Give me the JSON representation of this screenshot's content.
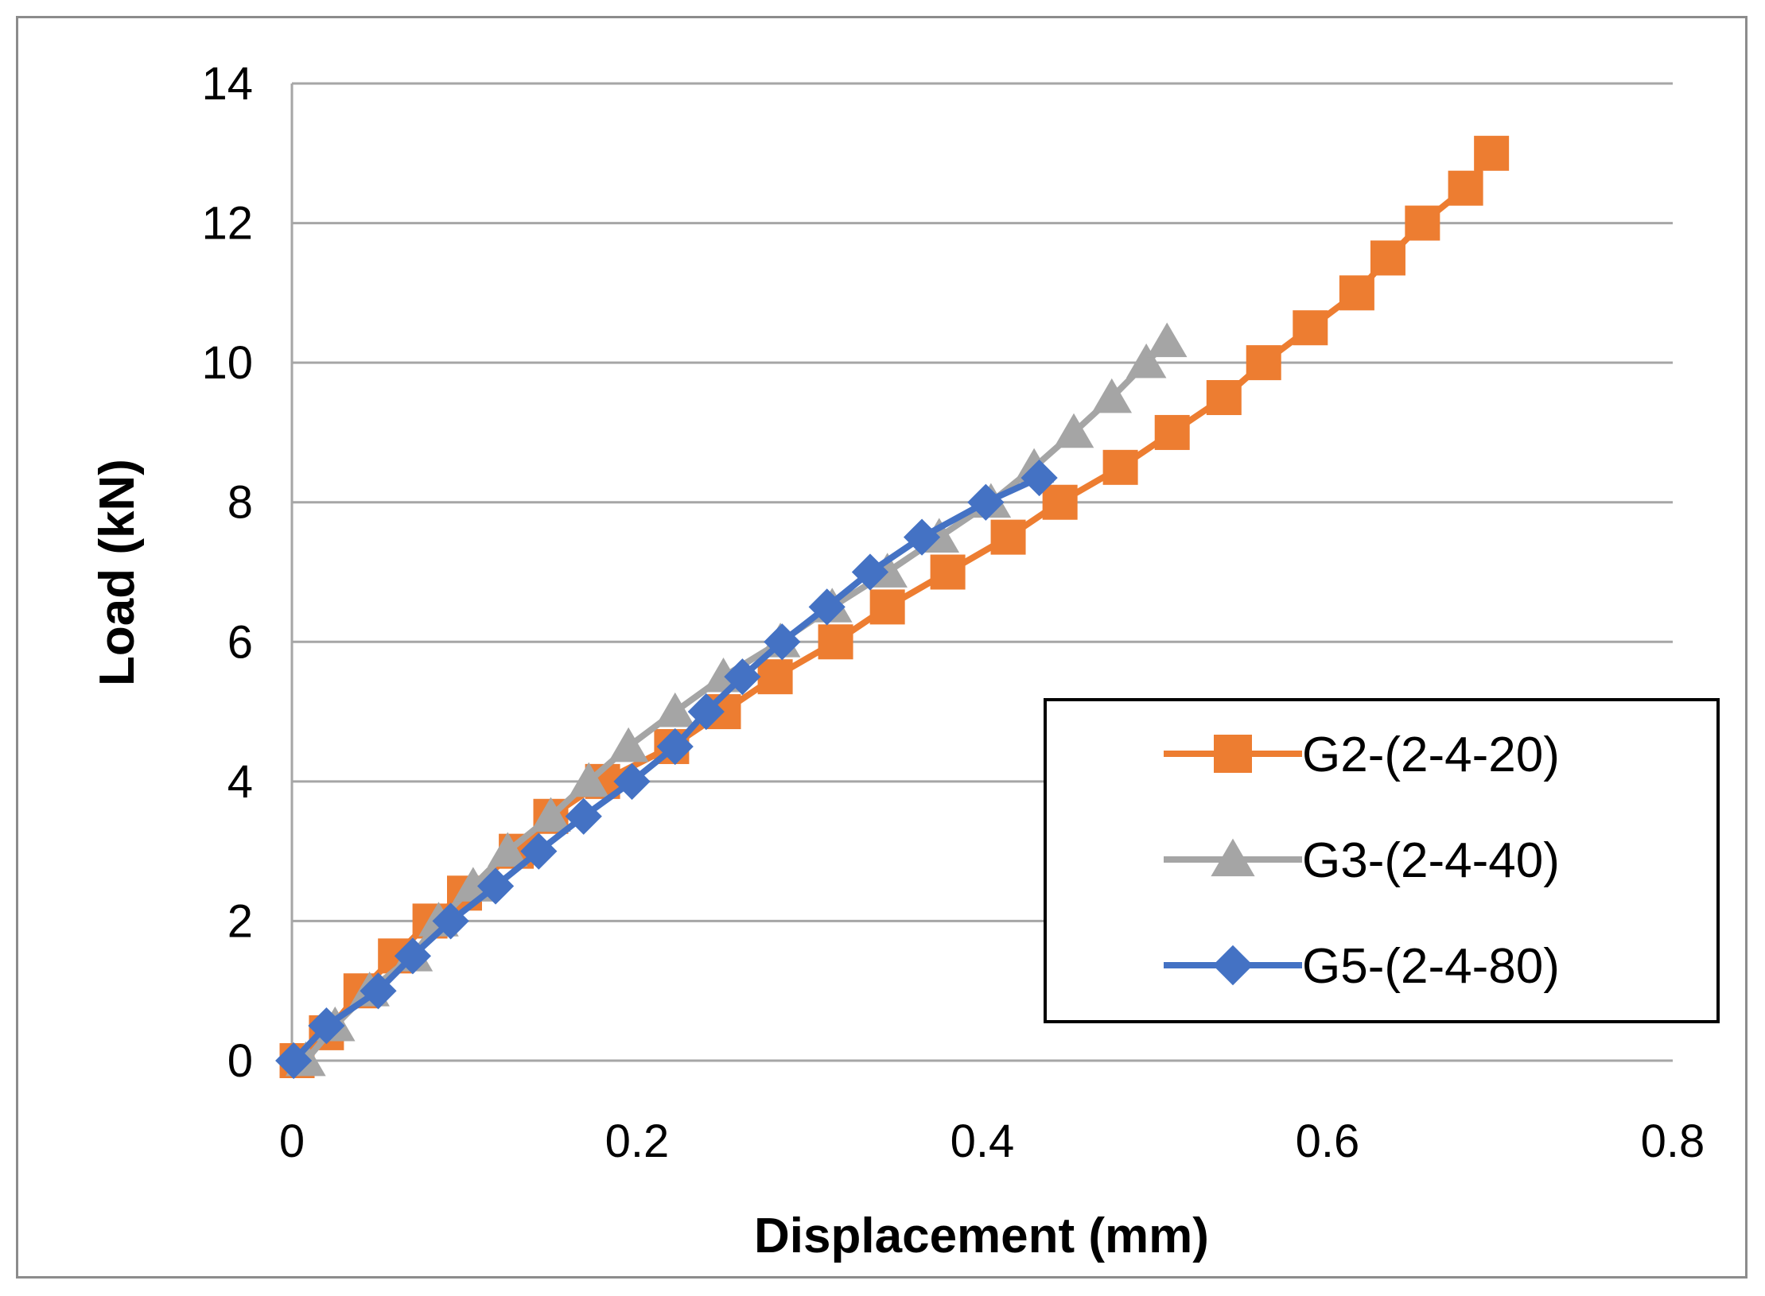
{
  "chart_data": {
    "type": "line",
    "xlabel": "Displacement (mm)",
    "ylabel": "Load (kN)",
    "xlim": [
      0,
      0.8
    ],
    "ylim": [
      0,
      14
    ],
    "x_ticks": [
      "0",
      "0.2",
      "0.4",
      "0.6",
      "0.8"
    ],
    "y_ticks": [
      "0",
      "2",
      "4",
      "6",
      "8",
      "10",
      "12",
      "14"
    ],
    "grid": "horizontal",
    "legend_position": "bottom-right",
    "series": [
      {
        "name": "G2-(2-4-20)",
        "color": "#ED7D31",
        "marker": "square",
        "points": [
          [
            0.003,
            0
          ],
          [
            0.02,
            0.4
          ],
          [
            0.04,
            1.0
          ],
          [
            0.06,
            1.5
          ],
          [
            0.08,
            2.0
          ],
          [
            0.1,
            2.4
          ],
          [
            0.13,
            3.0
          ],
          [
            0.15,
            3.5
          ],
          [
            0.18,
            4.0
          ],
          [
            0.22,
            4.5
          ],
          [
            0.25,
            5.0
          ],
          [
            0.28,
            5.5
          ],
          [
            0.315,
            6.0
          ],
          [
            0.345,
            6.5
          ],
          [
            0.38,
            7.0
          ],
          [
            0.415,
            7.5
          ],
          [
            0.445,
            8.0
          ],
          [
            0.48,
            8.5
          ],
          [
            0.51,
            9.0
          ],
          [
            0.54,
            9.5
          ],
          [
            0.563,
            10.0
          ],
          [
            0.59,
            10.5
          ],
          [
            0.617,
            11.0
          ],
          [
            0.635,
            11.5
          ],
          [
            0.655,
            12.0
          ],
          [
            0.68,
            12.5
          ],
          [
            0.695,
            13.0
          ]
        ]
      },
      {
        "name": "G3-(2-4-40)",
        "color": "#A5A5A5",
        "marker": "triangle",
        "points": [
          [
            0.008,
            0
          ],
          [
            0.025,
            0.5
          ],
          [
            0.045,
            1.0
          ],
          [
            0.07,
            1.5
          ],
          [
            0.085,
            2.0
          ],
          [
            0.105,
            2.5
          ],
          [
            0.125,
            3.0
          ],
          [
            0.15,
            3.5
          ],
          [
            0.172,
            4.0
          ],
          [
            0.195,
            4.5
          ],
          [
            0.222,
            5.0
          ],
          [
            0.25,
            5.5
          ],
          [
            0.283,
            6.0
          ],
          [
            0.313,
            6.5
          ],
          [
            0.345,
            7.0
          ],
          [
            0.375,
            7.5
          ],
          [
            0.405,
            8.0
          ],
          [
            0.43,
            8.5
          ],
          [
            0.453,
            9.0
          ],
          [
            0.475,
            9.5
          ],
          [
            0.495,
            10.0
          ],
          [
            0.507,
            10.3
          ]
        ]
      },
      {
        "name": "G5-(2-4-80)",
        "color": "#4472C4",
        "marker": "diamond",
        "points": [
          [
            0.001,
            0
          ],
          [
            0.02,
            0.5
          ],
          [
            0.05,
            1.0
          ],
          [
            0.07,
            1.5
          ],
          [
            0.092,
            2.0
          ],
          [
            0.118,
            2.5
          ],
          [
            0.143,
            3.0
          ],
          [
            0.169,
            3.5
          ],
          [
            0.197,
            4.0
          ],
          [
            0.222,
            4.5
          ],
          [
            0.24,
            5.0
          ],
          [
            0.261,
            5.5
          ],
          [
            0.284,
            6.0
          ],
          [
            0.31,
            6.5
          ],
          [
            0.335,
            7.0
          ],
          [
            0.365,
            7.5
          ],
          [
            0.402,
            8.0
          ],
          [
            0.433,
            8.35
          ]
        ]
      }
    ]
  }
}
